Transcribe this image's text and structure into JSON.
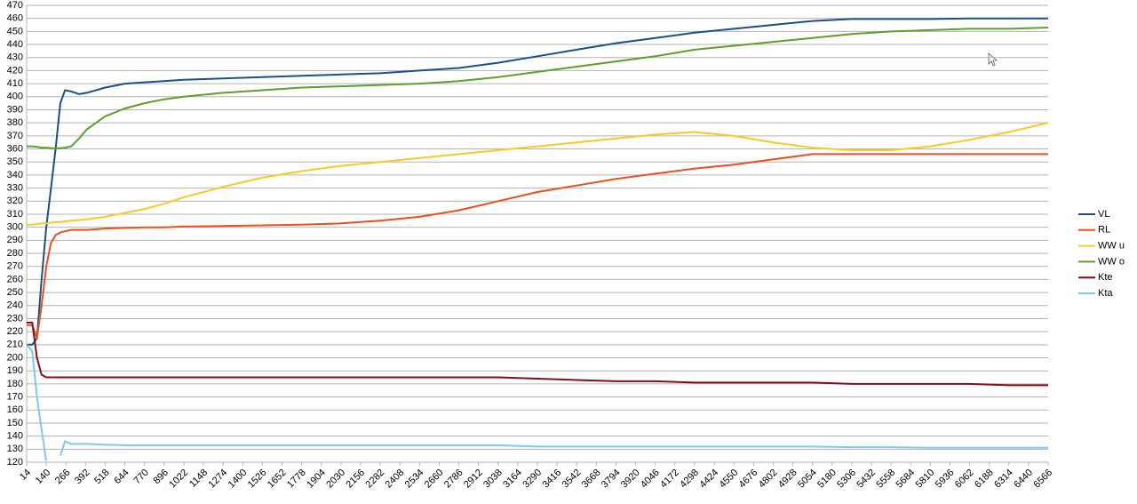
{
  "chart_data": {
    "type": "line",
    "x": [
      14,
      50,
      80,
      110,
      140,
      170,
      200,
      230,
      260,
      300,
      350,
      400,
      518,
      644,
      770,
      896,
      1022,
      1274,
      1526,
      1778,
      2030,
      2282,
      2534,
      2786,
      3038,
      3290,
      3542,
      3794,
      4046,
      4298,
      4550,
      4802,
      5054,
      5306,
      5558,
      5810,
      6062,
      6314,
      6566
    ],
    "series": [
      {
        "name": "VL",
        "color": "#1b4f8a",
        "values": [
          210,
          210,
          215,
          260,
          300,
          330,
          360,
          395,
          405,
          404,
          402,
          403,
          407,
          410,
          411,
          412,
          413,
          414,
          415,
          416,
          417,
          418,
          420,
          422,
          426,
          431,
          436,
          441,
          445,
          449,
          452,
          455,
          458,
          459.5,
          459.5,
          459.5,
          460,
          460,
          460
        ]
      },
      {
        "name": "RL",
        "color": "#e8501e",
        "values": [
          225,
          225,
          215,
          240,
          270,
          288,
          294,
          296,
          297,
          298,
          298,
          298,
          299,
          299.5,
          300,
          300,
          300.5,
          301,
          301.5,
          302,
          303,
          305,
          308,
          313,
          320,
          327,
          332,
          337,
          341,
          345,
          348,
          352,
          356,
          356,
          356,
          356,
          356,
          356,
          356
        ]
      },
      {
        "name": "WW u",
        "color": "#f9c928",
        "values": [
          302,
          302,
          302.5,
          303,
          303,
          303.5,
          304,
          304,
          304.5,
          305,
          305.5,
          306,
          308,
          311,
          314,
          318,
          323,
          331,
          338,
          343,
          347,
          350,
          353,
          356,
          359,
          362,
          365,
          368,
          371,
          373,
          370,
          365,
          361,
          359,
          359,
          362,
          367,
          373,
          380
        ]
      },
      {
        "name": "WW o",
        "color": "#5d9e2d",
        "values": [
          362,
          362,
          361.5,
          361,
          361,
          360.5,
          360.5,
          360.5,
          361,
          362,
          368,
          375,
          385,
          391,
          395,
          398,
          400,
          403,
          405,
          407,
          408,
          409,
          410,
          412,
          415,
          419,
          423,
          427,
          431,
          436,
          439,
          442,
          445,
          448,
          450,
          451,
          452,
          452,
          453
        ]
      },
      {
        "name": "Kte",
        "color": "#7f0f1e",
        "values": [
          227,
          227,
          200,
          187,
          185,
          185,
          185,
          185,
          185,
          185,
          185,
          185,
          185,
          185,
          185,
          185,
          185,
          185,
          185,
          185,
          185,
          185,
          185,
          185,
          185,
          184,
          183,
          182,
          182,
          181,
          181,
          181,
          181,
          180,
          180,
          180,
          180,
          179,
          179
        ]
      },
      {
        "name": "Kta",
        "color": "#7fc8ee",
        "values": [
          210,
          205,
          170,
          145,
          121,
          null,
          null,
          125,
          136,
          134,
          134,
          134,
          133.5,
          133,
          133,
          133,
          133,
          133,
          133,
          133,
          133,
          133,
          133,
          133,
          133,
          132,
          132,
          132,
          132,
          132,
          132,
          132,
          132,
          131.5,
          131.5,
          131,
          131,
          131,
          131
        ]
      }
    ],
    "xlim": [
      14,
      6566
    ],
    "xticks": [
      14,
      140,
      266,
      392,
      518,
      644,
      770,
      896,
      1022,
      1148,
      1274,
      1400,
      1526,
      1652,
      1778,
      1904,
      2030,
      2156,
      2282,
      2408,
      2534,
      2660,
      2786,
      2912,
      3038,
      3164,
      3290,
      3416,
      3542,
      3668,
      3794,
      3920,
      4046,
      4172,
      4298,
      4424,
      4550,
      4676,
      4802,
      4928,
      5054,
      5180,
      5306,
      5432,
      5558,
      5684,
      5810,
      5936,
      6062,
      6188,
      6314,
      6440,
      6566
    ],
    "ylim": [
      120,
      470
    ],
    "yticks": [
      120,
      130,
      140,
      150,
      160,
      170,
      180,
      190,
      200,
      210,
      220,
      230,
      240,
      250,
      260,
      270,
      280,
      290,
      300,
      310,
      320,
      330,
      340,
      350,
      360,
      370,
      380,
      390,
      400,
      410,
      420,
      430,
      440,
      450,
      460,
      470
    ],
    "grid": true,
    "legend": "right"
  }
}
